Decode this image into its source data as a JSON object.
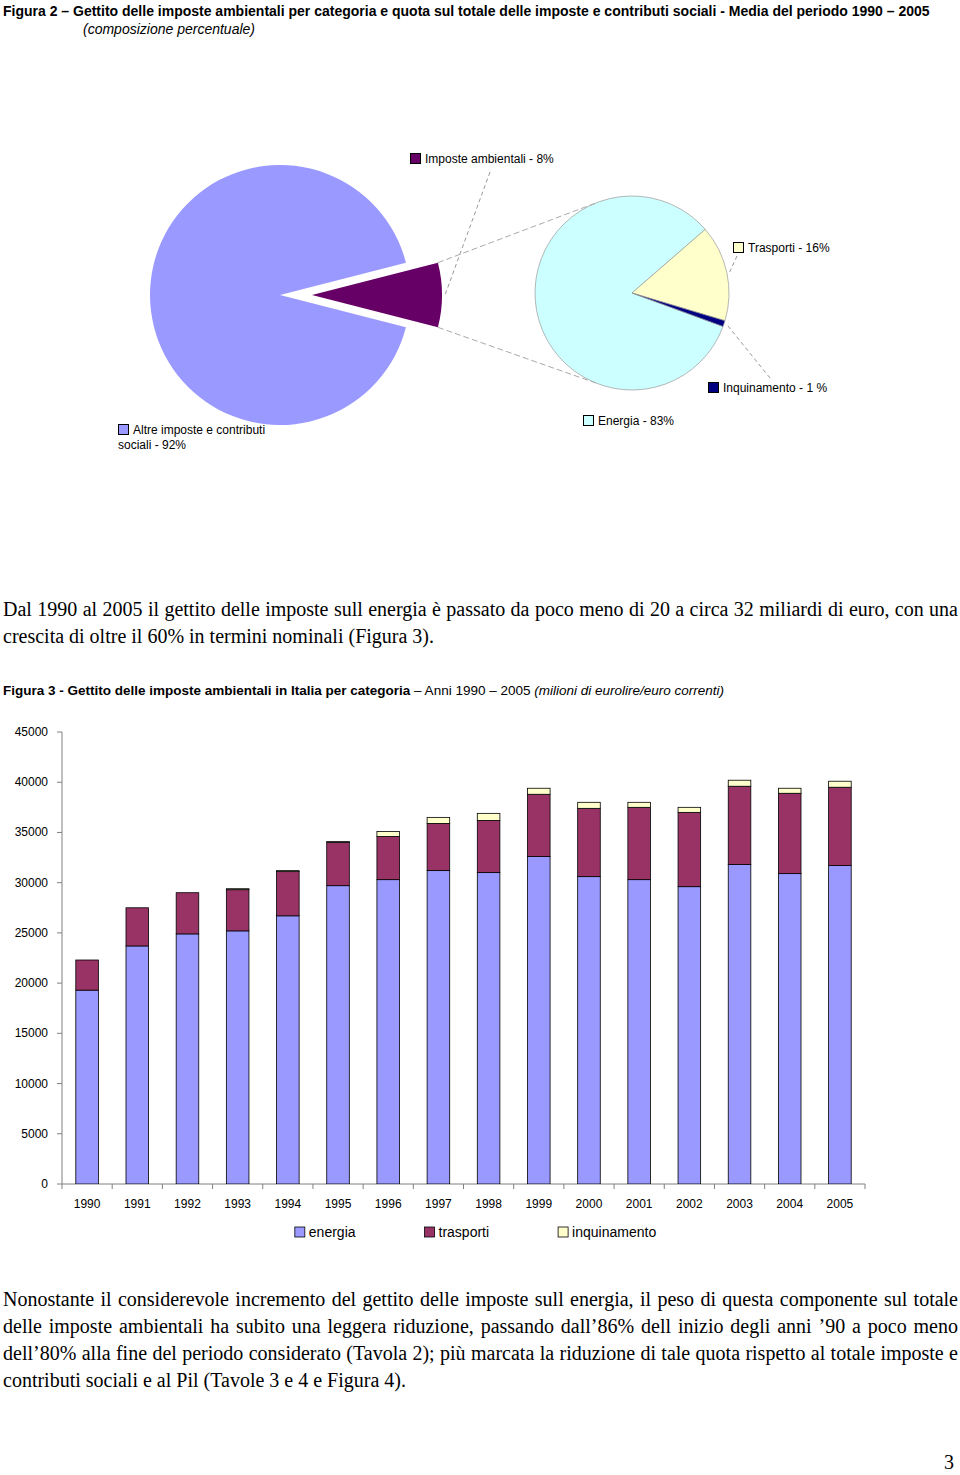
{
  "chart_data": [
    {
      "type": "pie",
      "title": "Figura 2 – Gettito delle imposte ambientali per categoria e quota sul totale delle imposte e contributi sociali - Media del periodo 1990 – 2005",
      "subtitle": "(composizione percentuale)",
      "categories": [
        "Altre imposte e contributi sociali - 92%",
        "Imposte ambientali - 8%"
      ],
      "values": [
        92,
        8
      ],
      "colors": [
        "#9999FF",
        "#660066"
      ]
    },
    {
      "type": "pie",
      "categories": [
        "Energia - 83%",
        "Trasporti - 16%",
        "Inquinamento - 1 %"
      ],
      "values": [
        83,
        16,
        1
      ],
      "colors": [
        "#CCFFFF",
        "#FFFFCC",
        "#000080"
      ]
    },
    {
      "type": "bar",
      "title": "Figura 3 - Gettito delle imposte ambientali in Italia per categoria",
      "subtitle": "– Anni 1990 – 2005",
      "annotations": [
        "(milioni di eurolire/euro correnti)"
      ],
      "stacked": true,
      "grid": false,
      "legend": "bottom",
      "categories": [
        "1990",
        "1991",
        "1992",
        "1993",
        "1994",
        "1995",
        "1996",
        "1997",
        "1998",
        "1999",
        "2000",
        "2001",
        "2002",
        "2003",
        "2004",
        "2005"
      ],
      "series": [
        {
          "name": "energia",
          "color": "#9999FF",
          "values": [
            19300,
            23700,
            24900,
            25200,
            26700,
            29700,
            30300,
            31200,
            31000,
            32600,
            30600,
            30300,
            29600,
            31800,
            30900,
            31700
          ]
        },
        {
          "name": "trasporti",
          "color": "#993366",
          "values": [
            3000,
            3800,
            4100,
            4100,
            4400,
            4300,
            4300,
            4700,
            5200,
            6200,
            6800,
            7200,
            7400,
            7800,
            8000,
            7800
          ]
        },
        {
          "name": "inquinamento",
          "color": "#FFFFCC",
          "values": [
            0,
            0,
            0,
            100,
            100,
            100,
            500,
            600,
            700,
            600,
            600,
            500,
            500,
            600,
            500,
            600
          ]
        }
      ],
      "ylim": [
        0,
        45000
      ],
      "yticks": [
        0,
        5000,
        10000,
        15000,
        20000,
        25000,
        30000,
        35000,
        40000,
        45000
      ]
    }
  ],
  "paragraphs": [
    "Dal 1990 al 2005 il gettito delle imposte sull energia è passato da poco meno di 20 a circa 32 miliardi di euro, con una crescita di oltre il 60% in termini nominali (Figura 3).",
    "Nonostante il considerevole incremento del gettito delle imposte sull energia, il peso di questa componente sul totale delle imposte ambientali ha subito una leggera riduzione, passando dall’86% dell inizio degli anni ’90 a poco meno dell’80% alla fine del periodo considerato (Tavola 2); più marcata la riduzione di tale quota rispetto al totale imposte e contributi sociali e al Pil (Tavole 3 e 4 e Figura 4)."
  ],
  "page_number": "3"
}
